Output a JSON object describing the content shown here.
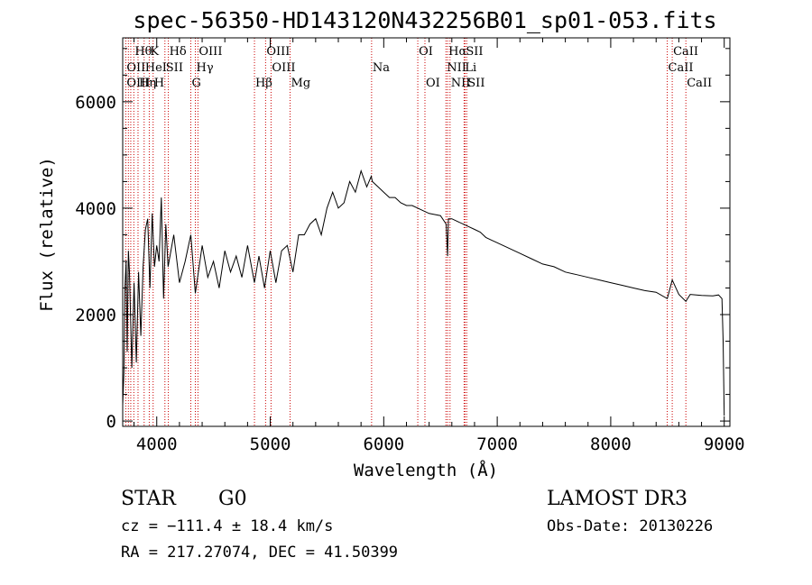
{
  "chart_data": {
    "type": "line",
    "title": "spec-56350-HD143120N432256B01_sp01-053.fits",
    "xlabel": "Wavelength (Å)",
    "ylabel": "Flux (relative)",
    "xlim": [
      3700,
      9050
    ],
    "ylim": [
      -100,
      7200
    ],
    "xticks": [
      4000,
      5000,
      6000,
      7000,
      8000,
      9000
    ],
    "yticks": [
      0,
      2000,
      4000,
      6000
    ],
    "xticklabels": [
      "4000",
      "5000",
      "6000",
      "7000",
      "8000",
      "9000"
    ],
    "yticklabels": [
      "0",
      "2000",
      "4000",
      "6000"
    ],
    "spectrum": {
      "x": [
        3700,
        3710,
        3720,
        3730,
        3740,
        3750,
        3760,
        3780,
        3800,
        3820,
        3840,
        3860,
        3880,
        3900,
        3920,
        3940,
        3960,
        3980,
        4000,
        4020,
        4040,
        4060,
        4080,
        4100,
        4150,
        4200,
        4250,
        4300,
        4340,
        4400,
        4450,
        4500,
        4550,
        4600,
        4650,
        4700,
        4750,
        4800,
        4861,
        4900,
        4950,
        5000,
        5050,
        5100,
        5150,
        5200,
        5250,
        5300,
        5350,
        5400,
        5450,
        5500,
        5550,
        5600,
        5650,
        5700,
        5750,
        5800,
        5850,
        5890,
        5900,
        5950,
        6000,
        6050,
        6100,
        6150,
        6200,
        6250,
        6300,
        6350,
        6400,
        6450,
        6500,
        6550,
        6563,
        6570,
        6600,
        6650,
        6700,
        6750,
        6800,
        6850,
        6900,
        6950,
        7000,
        7100,
        7200,
        7300,
        7400,
        7500,
        7600,
        7700,
        7800,
        7900,
        8000,
        8100,
        8200,
        8300,
        8400,
        8498,
        8542,
        8600,
        8662,
        8700,
        8800,
        8900,
        8950,
        8980,
        8990,
        9000
      ],
      "y": [
        300,
        900,
        2500,
        3000,
        1300,
        3200,
        2800,
        1000,
        2600,
        1100,
        2800,
        1600,
        2900,
        3600,
        3800,
        2500,
        3900,
        2900,
        3300,
        3000,
        4200,
        2300,
        3700,
        2900,
        3500,
        2600,
        3000,
        3500,
        2400,
        3300,
        2700,
        3000,
        2500,
        3200,
        2800,
        3100,
        2700,
        3300,
        2600,
        3100,
        2500,
        3200,
        2600,
        3200,
        3300,
        2800,
        3500,
        3500,
        3700,
        3800,
        3500,
        4000,
        4300,
        4000,
        4100,
        4500,
        4300,
        4700,
        4400,
        4600,
        4500,
        4400,
        4300,
        4200,
        4200,
        4100,
        4050,
        4050,
        4000,
        3950,
        3900,
        3880,
        3860,
        3700,
        3100,
        3800,
        3800,
        3750,
        3700,
        3650,
        3600,
        3550,
        3450,
        3400,
        3350,
        3250,
        3150,
        3050,
        2950,
        2900,
        2800,
        2750,
        2700,
        2650,
        2600,
        2550,
        2500,
        2450,
        2420,
        2300,
        2650,
        2380,
        2250,
        2380,
        2360,
        2350,
        2370,
        2300,
        1500,
        100
      ]
    },
    "line_labels": [
      {
        "name": "Hθ",
        "wave": 3798,
        "row": 0
      },
      {
        "name": "K",
        "wave": 3934,
        "row": 0
      },
      {
        "name": "Hδ",
        "wave": 4102,
        "row": 0
      },
      {
        "name": "OIII",
        "wave": 4363,
        "row": 0
      },
      {
        "name": "OIII",
        "wave": 4959,
        "row": 0
      },
      {
        "name": "OI",
        "wave": 6300,
        "row": 0
      },
      {
        "name": "Hα",
        "wave": 6563,
        "row": 0
      },
      {
        "name": "SII",
        "wave": 6716,
        "row": 0
      },
      {
        "name": "CaII",
        "wave": 8542,
        "row": 0
      },
      {
        "name": "OII",
        "wave": 3727,
        "row": 1
      },
      {
        "name": "HeI",
        "wave": 3889,
        "row": 1
      },
      {
        "name": "SII",
        "wave": 4072,
        "row": 1
      },
      {
        "name": "Hγ",
        "wave": 4340,
        "row": 1
      },
      {
        "name": "OIII",
        "wave": 5007,
        "row": 1
      },
      {
        "name": "Na",
        "wave": 5893,
        "row": 1
      },
      {
        "name": "NII",
        "wave": 6548,
        "row": 1
      },
      {
        "name": "Li",
        "wave": 6708,
        "row": 1
      },
      {
        "name": "CaII",
        "wave": 8498,
        "row": 1
      },
      {
        "name": "OIII",
        "wave": 3727,
        "row": 2
      },
      {
        "name": "Hη",
        "wave": 3835,
        "row": 2
      },
      {
        "name": "H",
        "wave": 3968,
        "row": 2
      },
      {
        "name": "G",
        "wave": 4300,
        "row": 2
      },
      {
        "name": "Hβ",
        "wave": 4861,
        "row": 2
      },
      {
        "name": "Mg",
        "wave": 5175,
        "row": 2
      },
      {
        "name": "OI",
        "wave": 6363,
        "row": 2
      },
      {
        "name": "NII",
        "wave": 6584,
        "row": 2
      },
      {
        "name": "SII",
        "wave": 6731,
        "row": 2
      },
      {
        "name": "CaII",
        "wave": 8662,
        "row": 2
      }
    ],
    "line_markers": [
      3727,
      3750,
      3771,
      3798,
      3835,
      3889,
      3934,
      3968,
      4072,
      4102,
      4300,
      4340,
      4363,
      4861,
      4959,
      5007,
      5175,
      5893,
      6300,
      6363,
      6548,
      6563,
      6584,
      6708,
      6716,
      6731,
      8498,
      8542,
      8662
    ]
  },
  "info": {
    "object_class": "STAR",
    "subclass": "G0",
    "survey": "LAMOST DR3",
    "cz": "cz = −111.4 ± 18.4 km/s",
    "obs_date": "Obs-Date: 20130226",
    "coords": "RA = 217.27074, DEC =  41.50399"
  },
  "colors": {
    "spectrum": "#000000",
    "marker": "#cc0000"
  }
}
